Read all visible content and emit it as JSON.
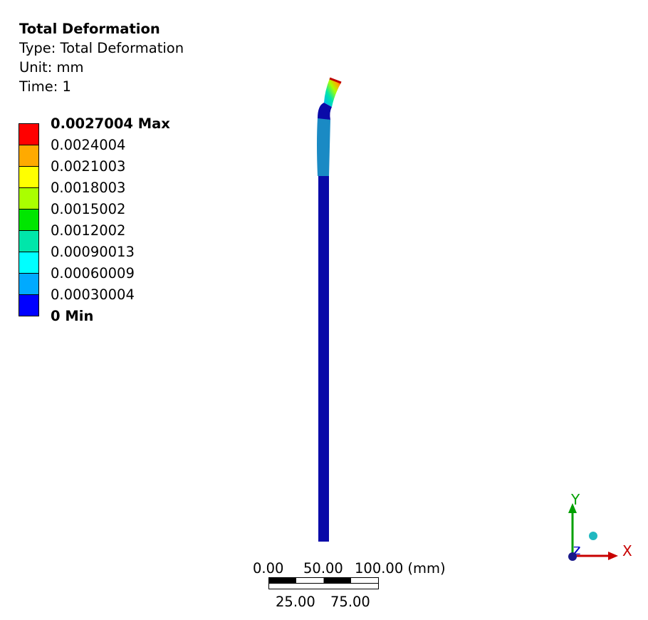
{
  "result": {
    "title": "Total Deformation",
    "type_line": "Type: Total Deformation",
    "unit_line": "Unit: mm",
    "time_line": "Time: 1"
  },
  "legend": {
    "labels": [
      "0.0027004 Max",
      "0.0024004",
      "0.0021003",
      "0.0018003",
      "0.0015002",
      "0.0012002",
      "0.00090013",
      "0.00060009",
      "0.00030004",
      "0 Min"
    ],
    "colors": [
      "#ff0000",
      "#ffaa00",
      "#ffff00",
      "#aaff00",
      "#00e600",
      "#00e6aa",
      "#00ffff",
      "#00aaff",
      "#0000ff"
    ]
  },
  "model_colors": {
    "shaft": "#0a0aa8",
    "tip_band": "#1a8ac4"
  },
  "scale_bar": {
    "top_labels": [
      "0.00",
      "50.00",
      "100.00 (mm)"
    ],
    "bottom_labels": [
      "25.00",
      "75.00"
    ]
  },
  "triad": {
    "x_label": "X",
    "y_label": "Y",
    "z_label": "Z",
    "x_color": "#c80000",
    "y_color": "#00a000",
    "z_color": "#0000c8"
  }
}
